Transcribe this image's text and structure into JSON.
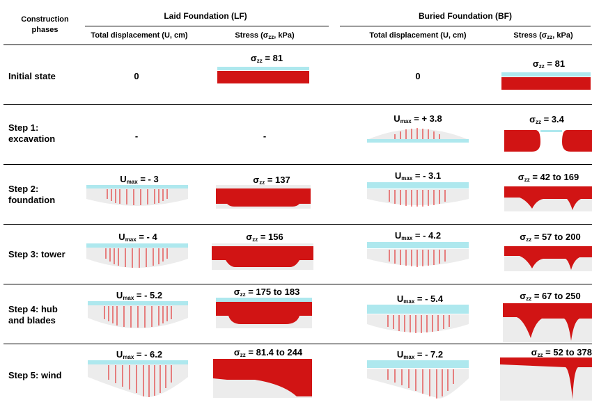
{
  "header": {
    "phases": "Construction phases",
    "lf_title": "Laid Foundation (LF)",
    "bf_title": "Buried Foundation (BF)",
    "disp_col": "Total displacement (U, cm)",
    "stress_col_prefix": "Stress (σ",
    "stress_col_sub": "zz",
    "stress_col_suffix": ", kPa)"
  },
  "colors": {
    "foundation": "#aee8ee",
    "stress": "#d11414",
    "arrows": "#e01010",
    "ground": "#ececec"
  },
  "rows": [
    {
      "label": "Initial state",
      "lf_u": "0",
      "lf_s": "= 81",
      "bf_u": "0",
      "bf_s": "= 81"
    },
    {
      "label": "Step 1: excavation",
      "lf_u": "-",
      "lf_s": "-",
      "bf_u": "= + 3.8",
      "bf_s": "= 3.4"
    },
    {
      "label": "Step 2: foundation",
      "lf_u": "= - 3",
      "lf_s": "= 137",
      "bf_u": "= - 3.1",
      "bf_s": "= 42 to 169"
    },
    {
      "label": "Step 3: tower",
      "lf_u": "= - 4",
      "lf_s": "= 156",
      "bf_u": "= - 4.2",
      "bf_s": "= 57 to 200"
    },
    {
      "label": "Step 4: hub and blades",
      "lf_u": "= - 5.2",
      "lf_s": "= 175 to 183",
      "bf_u": "= - 5.4",
      "bf_s": "= 67 to 250"
    },
    {
      "label": "Step 5: wind",
      "lf_u": "= - 6.2",
      "lf_s": "= 81.4 to 244",
      "bf_u": "= - 7.2",
      "bf_s": "= 52 to 378"
    }
  ],
  "symbols": {
    "U": "U",
    "U_sub": "max",
    "sigma": "σ",
    "sigma_sub": "zz"
  }
}
